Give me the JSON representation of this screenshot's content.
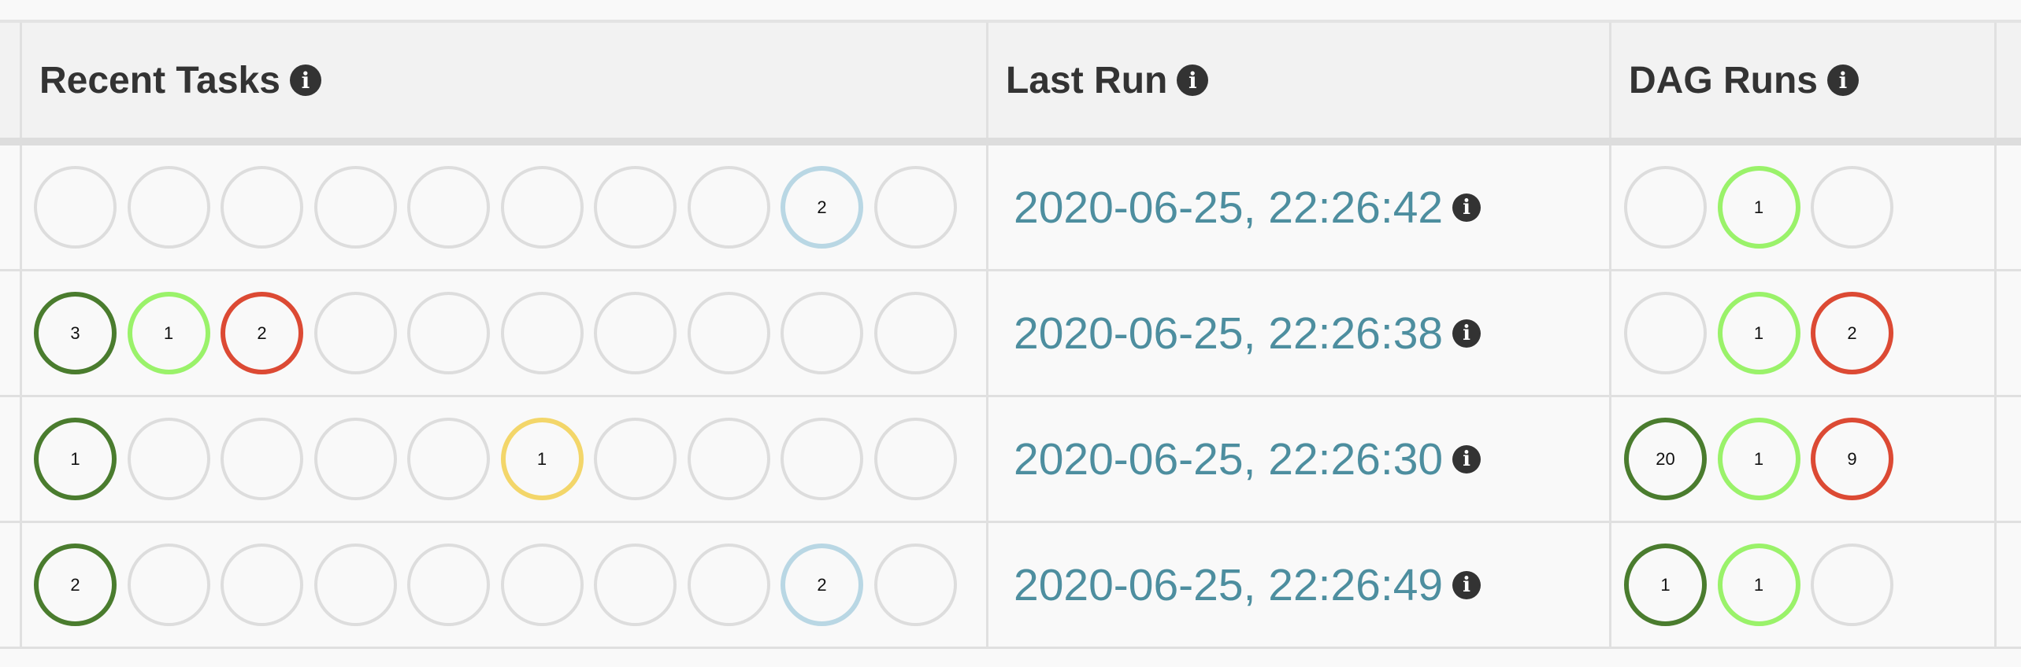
{
  "header": {
    "recent_tasks": "Recent Tasks",
    "last_run": "Last Run",
    "dag_runs": "DAG Runs",
    "info_icon": "info-circle-icon"
  },
  "state_colors": {
    "none": "#dddddd",
    "success": "#4a7c2e",
    "running": "#9af26a",
    "failed": "#dc4a34",
    "up_for_retry": "#f3d66a",
    "scheduled": "#b9d7e4"
  },
  "rows": [
    {
      "recent_tasks": [
        {
          "state": "none",
          "count": ""
        },
        {
          "state": "none",
          "count": ""
        },
        {
          "state": "none",
          "count": ""
        },
        {
          "state": "none",
          "count": ""
        },
        {
          "state": "none",
          "count": ""
        },
        {
          "state": "none",
          "count": ""
        },
        {
          "state": "none",
          "count": ""
        },
        {
          "state": "none",
          "count": ""
        },
        {
          "state": "scheduled",
          "count": "2"
        },
        {
          "state": "none",
          "count": ""
        }
      ],
      "last_run": "2020-06-25, 22:26:42",
      "dag_runs": [
        {
          "state": "none",
          "count": ""
        },
        {
          "state": "running",
          "count": "1"
        },
        {
          "state": "none",
          "count": ""
        }
      ]
    },
    {
      "recent_tasks": [
        {
          "state": "success",
          "count": "3"
        },
        {
          "state": "running",
          "count": "1"
        },
        {
          "state": "failed",
          "count": "2"
        },
        {
          "state": "none",
          "count": ""
        },
        {
          "state": "none",
          "count": ""
        },
        {
          "state": "none",
          "count": ""
        },
        {
          "state": "none",
          "count": ""
        },
        {
          "state": "none",
          "count": ""
        },
        {
          "state": "none",
          "count": ""
        },
        {
          "state": "none",
          "count": ""
        }
      ],
      "last_run": "2020-06-25, 22:26:38",
      "dag_runs": [
        {
          "state": "none",
          "count": ""
        },
        {
          "state": "running",
          "count": "1"
        },
        {
          "state": "failed",
          "count": "2"
        }
      ]
    },
    {
      "recent_tasks": [
        {
          "state": "success",
          "count": "1"
        },
        {
          "state": "none",
          "count": ""
        },
        {
          "state": "none",
          "count": ""
        },
        {
          "state": "none",
          "count": ""
        },
        {
          "state": "none",
          "count": ""
        },
        {
          "state": "up_for_retry",
          "count": "1"
        },
        {
          "state": "none",
          "count": ""
        },
        {
          "state": "none",
          "count": ""
        },
        {
          "state": "none",
          "count": ""
        },
        {
          "state": "none",
          "count": ""
        }
      ],
      "last_run": "2020-06-25, 22:26:30",
      "dag_runs": [
        {
          "state": "success",
          "count": "20"
        },
        {
          "state": "running",
          "count": "1"
        },
        {
          "state": "failed",
          "count": "9"
        }
      ]
    },
    {
      "recent_tasks": [
        {
          "state": "success",
          "count": "2"
        },
        {
          "state": "none",
          "count": ""
        },
        {
          "state": "none",
          "count": ""
        },
        {
          "state": "none",
          "count": ""
        },
        {
          "state": "none",
          "count": ""
        },
        {
          "state": "none",
          "count": ""
        },
        {
          "state": "none",
          "count": ""
        },
        {
          "state": "none",
          "count": ""
        },
        {
          "state": "scheduled",
          "count": "2"
        },
        {
          "state": "none",
          "count": ""
        }
      ],
      "last_run": "2020-06-25, 22:26:49",
      "dag_runs": [
        {
          "state": "success",
          "count": "1"
        },
        {
          "state": "running",
          "count": "1"
        },
        {
          "state": "none",
          "count": ""
        }
      ]
    }
  ]
}
